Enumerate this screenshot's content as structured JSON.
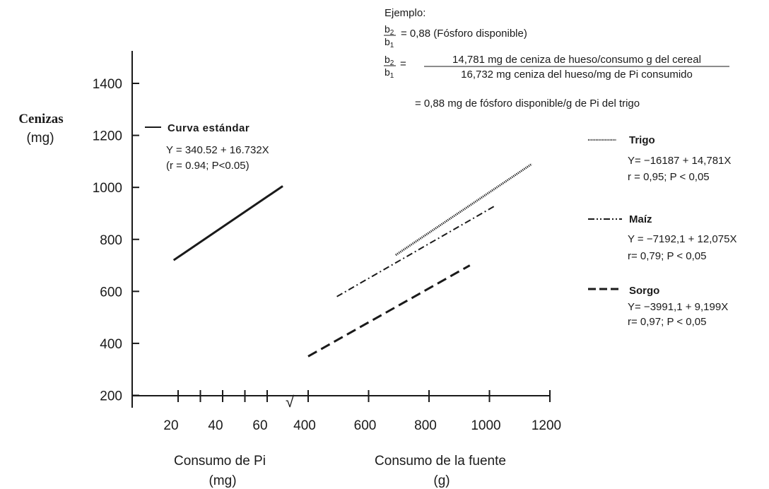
{
  "chart_data": {
    "type": "line",
    "ylabel": "Cenizas",
    "ylabel_unit": "(mg)",
    "y_ticks": [
      200,
      400,
      600,
      800,
      1000,
      1200,
      1400
    ],
    "left_panel": {
      "xlabel": "Consumo de  Pi",
      "xlabel_unit": "(mg)",
      "x_ticks": [
        20,
        40,
        60
      ],
      "series": [
        {
          "name": "Curva estándar",
          "style": "solid",
          "equation": "Y =  340.52 +  16.732X",
          "stats": "(r = 0.94; P<0.05)",
          "points": [
            [
              18,
              720
            ],
            [
              67,
              1005
            ]
          ]
        }
      ]
    },
    "break_symbol": "√",
    "right_panel": {
      "xlabel": "Consumo de la fuente",
      "xlabel_unit": "(g)",
      "x_ticks": [
        400,
        600,
        800,
        1000,
        1200
      ],
      "series": [
        {
          "name": "Trigo",
          "style": "dotted",
          "equation": "Y=  −16187 +  14,781X",
          "stats": "r = 0,95;  P < 0,05",
          "points": [
            [
              690,
              740
            ],
            [
              1140,
              1090
            ]
          ]
        },
        {
          "name": "Maíz",
          "style": "dash-dot",
          "equation": "Y =  −7192,1  + 12,075X",
          "stats": "r= 0,79; P < 0,05",
          "points": [
            [
              495,
              580
            ],
            [
              1020,
              930
            ]
          ]
        },
        {
          "name": "Sorgo",
          "style": "dashed",
          "equation": "Y= −3991,1  +  9,199X",
          "stats": "r=  0,97; P < 0,05",
          "points": [
            [
              400,
              350
            ],
            [
              935,
              700
            ]
          ]
        }
      ]
    },
    "annotation": {
      "heading": "Ejemplo:",
      "ratio_num": "b",
      "ratio_num_sub": "2",
      "ratio_den": "b",
      "ratio_den_sub": "1",
      "line1_value": "= 0,88 (Fósforo disponible)",
      "frac_num": "14,781 mg de ceniza de hueso/consumo  g  del cereal",
      "frac_den": "16,732 mg ceniza del hueso/mg de Pi consumido",
      "result": "=  0,88 mg de fósforo disponible/g  de Pi del trigo"
    }
  }
}
